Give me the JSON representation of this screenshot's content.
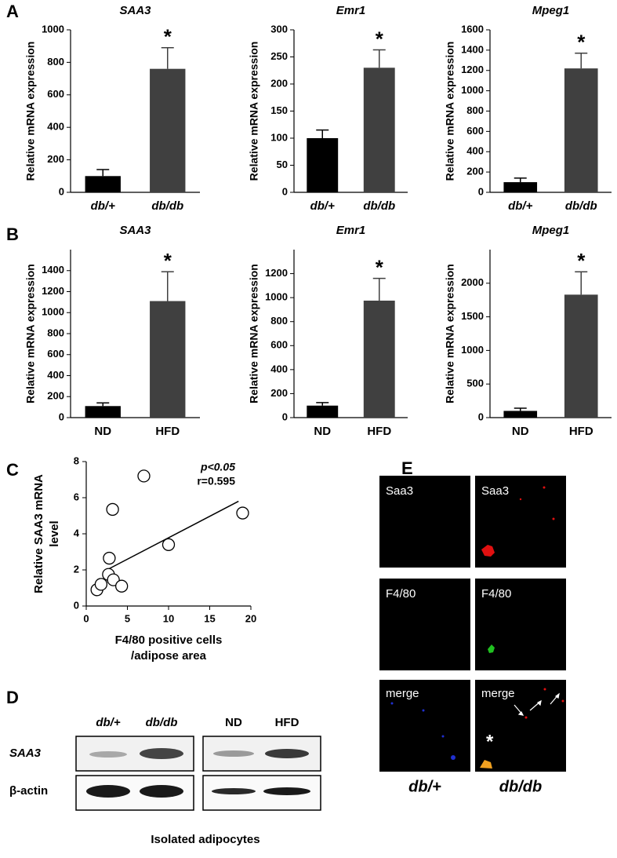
{
  "panel_labels": [
    "A",
    "B",
    "C",
    "D",
    "E"
  ],
  "chart_data": [
    {
      "type": "bar",
      "title": "SAA3",
      "ylabel": "Relative mRNA expression",
      "categories": [
        "db/+",
        "db/db"
      ],
      "italic_categories": true,
      "values": [
        100,
        760
      ],
      "errors": [
        40,
        130
      ],
      "colors": [
        "#000000",
        "#404040"
      ],
      "significance": "*",
      "ylim": [
        0,
        1000
      ],
      "yticks": [
        0,
        200,
        400,
        600,
        800,
        1000
      ]
    },
    {
      "type": "bar",
      "title": "Emr1",
      "ylabel": "Relative mRNA expression",
      "categories": [
        "db/+",
        "db/db"
      ],
      "italic_categories": true,
      "values": [
        100,
        230
      ],
      "errors": [
        15,
        33
      ],
      "colors": [
        "#000000",
        "#404040"
      ],
      "significance": "*",
      "ylim": [
        0,
        300
      ],
      "yticks": [
        0,
        50,
        100,
        150,
        200,
        250,
        300
      ]
    },
    {
      "type": "bar",
      "title": "Mpeg1",
      "ylabel": "Relative mRNA expression",
      "categories": [
        "db/+",
        "db/db"
      ],
      "italic_categories": true,
      "values": [
        100,
        1220
      ],
      "errors": [
        40,
        150
      ],
      "colors": [
        "#000000",
        "#404040"
      ],
      "significance": "*",
      "ylim": [
        0,
        1600
      ],
      "yticks": [
        0,
        200,
        400,
        600,
        800,
        1000,
        1200,
        1400,
        1600
      ]
    },
    {
      "type": "bar",
      "title": "SAA3",
      "ylabel": "Relative mRNA expression",
      "categories": [
        "ND",
        "HFD"
      ],
      "italic_categories": false,
      "values": [
        110,
        1110
      ],
      "errors": [
        30,
        280
      ],
      "colors": [
        "#000000",
        "#404040"
      ],
      "significance": "*",
      "ylim": [
        0,
        1600
      ],
      "yticks": [
        0,
        200,
        400,
        600,
        800,
        1000,
        1200,
        1400
      ]
    },
    {
      "type": "bar",
      "title": "Emr1",
      "ylabel": "Relative mRNA expression",
      "categories": [
        "ND",
        "HFD"
      ],
      "italic_categories": false,
      "values": [
        100,
        975
      ],
      "errors": [
        25,
        185
      ],
      "colors": [
        "#000000",
        "#404040"
      ],
      "significance": "*",
      "ylim": [
        0,
        1400
      ],
      "yticks": [
        0,
        200,
        400,
        600,
        800,
        1000,
        1200
      ]
    },
    {
      "type": "bar",
      "title": "Mpeg1",
      "ylabel": "Relative mRNA expression",
      "categories": [
        "ND",
        "HFD"
      ],
      "italic_categories": false,
      "values": [
        100,
        1830
      ],
      "errors": [
        40,
        340
      ],
      "colors": [
        "#000000",
        "#404040"
      ],
      "significance": "*",
      "ylim": [
        0,
        2500
      ],
      "yticks": [
        0,
        500,
        1000,
        1500,
        2000
      ]
    },
    {
      "type": "scatter",
      "ylabel": [
        "Relative SAA3 mRNA",
        "level"
      ],
      "xlabel": [
        "F4/80 positive cells",
        "/adipose area"
      ],
      "x": [
        1.3,
        1.8,
        2.7,
        3.3,
        4.3,
        2.8,
        3.2,
        7.0,
        10.0,
        19.0
      ],
      "y": [
        0.9,
        1.2,
        1.75,
        1.45,
        1.1,
        2.65,
        5.35,
        7.2,
        3.4,
        5.15
      ],
      "fit": {
        "x": [
          2.5,
          18.5
        ],
        "y": [
          2.0,
          5.8
        ]
      },
      "annotations": [
        "p<0.05",
        "r=0.595"
      ],
      "xlim": [
        0,
        20
      ],
      "ylim": [
        0,
        8
      ],
      "xticks": [
        0,
        5,
        10,
        15,
        20
      ],
      "yticks": [
        0,
        2,
        4,
        6,
        8
      ]
    }
  ],
  "blot": {
    "groups": [
      [
        "db/+",
        "db/db"
      ],
      [
        "ND",
        "HFD"
      ]
    ],
    "rows": [
      "SAA3",
      "β-actin"
    ],
    "caption": "Isolated adipocytes"
  },
  "images": {
    "panels": [
      [
        "Saa3",
        "Saa3"
      ],
      [
        "F4/80",
        "F4/80"
      ],
      [
        "merge",
        "merge"
      ]
    ],
    "columns": [
      "db/+",
      "db/db"
    ],
    "marker": "*"
  }
}
